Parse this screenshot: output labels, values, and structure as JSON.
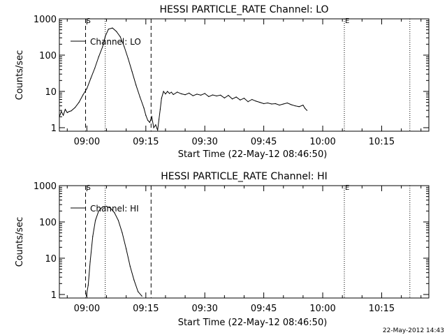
{
  "footer": {
    "timestamp": "22-May-2012 14:43"
  },
  "chart_data": [
    {
      "type": "line",
      "title": "HESSI PARTICLE_RATE Channel: LO",
      "xlabel": "Start Time (22-May-12 08:46:50)",
      "ylabel": "Counts/sec",
      "yscale": "log",
      "ylim": [
        0.8,
        1000
      ],
      "xlim": [
        "08:53:00",
        "10:27:00"
      ],
      "x_ticks": [
        "09:00",
        "09:15",
        "09:30",
        "09:45",
        "10:00",
        "10:15"
      ],
      "y_ticks": [
        "1",
        "10",
        "100",
        "1000"
      ],
      "legend": {
        "position": "top-left",
        "entries": [
          "Channel: LO"
        ]
      },
      "markers": [
        {
          "label": "S",
          "time": "08:59:40",
          "style": "dashed"
        },
        {
          "label": "",
          "time": "09:04:40",
          "style": "dotted"
        },
        {
          "label": "",
          "time": "09:16:20",
          "style": "dashed"
        },
        {
          "label": "E",
          "time": "10:05:30",
          "style": "dotted"
        },
        {
          "label": "",
          "time": "10:22:10",
          "style": "dotted"
        }
      ],
      "series": [
        {
          "name": "Channel: LO",
          "x": [
            "08:53:00",
            "08:53:30",
            "08:54:00",
            "08:54:30",
            "08:55:00",
            "08:55:30",
            "08:56:00",
            "08:57:00",
            "08:58:00",
            "08:59:00",
            "09:00:00",
            "09:01:00",
            "09:02:00",
            "09:03:00",
            "09:04:00",
            "09:04:40",
            "09:05:30",
            "09:06:30",
            "09:07:30",
            "09:08:30",
            "09:09:30",
            "09:10:30",
            "09:11:30",
            "09:12:30",
            "09:13:30",
            "09:14:30",
            "09:15:00",
            "09:15:30",
            "09:16:00",
            "09:16:30",
            "09:17:00",
            "09:17:30",
            "09:18:00",
            "09:18:20",
            "09:18:40",
            "09:19:00",
            "09:19:30",
            "09:20:00",
            "09:20:30",
            "09:21:00",
            "09:21:30",
            "09:22:00",
            "09:23:00",
            "09:24:00",
            "09:25:00",
            "09:26:00",
            "09:27:00",
            "09:28:00",
            "09:29:00",
            "09:30:00",
            "09:31:00",
            "09:32:00",
            "09:33:00",
            "09:34:00",
            "09:35:00",
            "09:36:00",
            "09:37:00",
            "09:38:00",
            "09:39:00",
            "09:40:00",
            "09:41:00",
            "09:42:00",
            "09:43:00",
            "09:44:00",
            "09:45:00",
            "09:46:00",
            "09:47:00",
            "09:48:00",
            "09:49:00",
            "09:50:00",
            "09:51:00",
            "09:52:00",
            "09:53:00",
            "09:54:00",
            "09:55:00",
            "09:55:30",
            "09:56:00"
          ],
          "y": [
            2.0,
            2.8,
            2.2,
            3.2,
            2.6,
            2.8,
            2.9,
            3.6,
            5.0,
            8.0,
            12,
            23,
            43,
            90,
            170,
            330,
            520,
            560,
            450,
            320,
            170,
            80,
            35,
            15,
            7.0,
            3.5,
            2.2,
            1.6,
            1.4,
            2.0,
            1.0,
            1.2,
            0.85,
            1.7,
            3.2,
            6.5,
            10,
            8.5,
            10,
            8.8,
            9.5,
            8.2,
            9.6,
            8.6,
            8.1,
            9.0,
            7.6,
            8.4,
            7.9,
            8.8,
            7.2,
            8.0,
            7.5,
            7.9,
            6.6,
            7.8,
            6.2,
            7.0,
            5.8,
            6.5,
            5.2,
            6.0,
            5.4,
            5.0,
            4.6,
            4.8,
            4.5,
            4.6,
            4.2,
            4.5,
            4.8,
            4.3,
            4.0,
            3.8,
            4.2,
            3.4,
            3.0
          ]
        }
      ]
    },
    {
      "type": "line",
      "title": "HESSI PARTICLE_RATE Channel: HI",
      "xlabel": "Start Time (22-May-12 08:46:50)",
      "ylabel": "Counts/sec",
      "yscale": "log",
      "ylim": [
        0.8,
        1000
      ],
      "xlim": [
        "08:53:00",
        "10:27:00"
      ],
      "x_ticks": [
        "09:00",
        "09:15",
        "09:30",
        "09:45",
        "10:00",
        "10:15"
      ],
      "y_ticks": [
        "1",
        "10",
        "100",
        "1000"
      ],
      "legend": {
        "position": "top-left",
        "entries": [
          "Channel: HI"
        ]
      },
      "markers": [
        {
          "label": "S",
          "time": "08:59:40",
          "style": "dashed"
        },
        {
          "label": "",
          "time": "09:04:40",
          "style": "dotted"
        },
        {
          "label": "",
          "time": "09:16:20",
          "style": "dashed"
        },
        {
          "label": "E",
          "time": "10:05:30",
          "style": "dotted"
        },
        {
          "label": "",
          "time": "10:22:10",
          "style": "dotted"
        }
      ],
      "series": [
        {
          "name": "Channel: HI",
          "x": [
            "08:59:50",
            "09:00:20",
            "09:00:50",
            "09:01:30",
            "09:02:10",
            "09:03:00",
            "09:04:00",
            "09:05:00",
            "09:06:00",
            "09:07:00",
            "09:08:00",
            "09:09:00",
            "09:10:00",
            "09:11:00",
            "09:12:00",
            "09:13:00",
            "09:14:00"
          ],
          "y": [
            0.9,
            1.8,
            8,
            40,
            110,
            200,
            260,
            270,
            240,
            180,
            110,
            50,
            18,
            6,
            2.5,
            1.2,
            0.9
          ]
        }
      ]
    }
  ]
}
